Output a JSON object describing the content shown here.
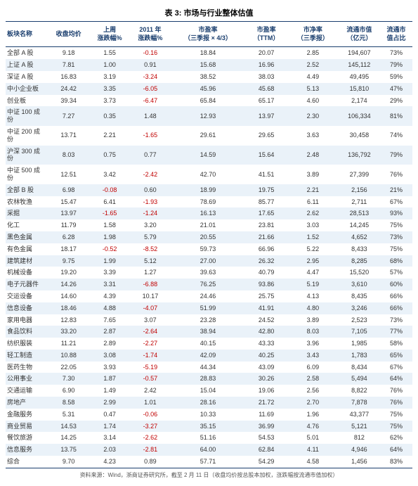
{
  "title": "表 3: 市场与行业整体估值",
  "columns": [
    "板块名称",
    "收盘均价",
    "上周\n涨跌幅%",
    "2011 年\n涨跌幅%",
    "市盈率\n（三季报 × 4/3）",
    "市盈率\n（TTM）",
    "市净率\n（三季报）",
    "流通市值\n（亿元）",
    "流通市\n值占比"
  ],
  "rows": [
    [
      "全部 A 股",
      "9.18",
      "1.55",
      "-0.16",
      "18.84",
      "20.07",
      "2.85",
      "194,607",
      "73%"
    ],
    [
      "上证 A 股",
      "7.81",
      "1.00",
      "0.91",
      "15.68",
      "16.96",
      "2.52",
      "145,112",
      "79%"
    ],
    [
      "深证 A 股",
      "16.83",
      "3.19",
      "-3.24",
      "38.52",
      "38.03",
      "4.49",
      "49,495",
      "59%"
    ],
    [
      "中小企业板",
      "24.42",
      "3.35",
      "-6.05",
      "45.96",
      "45.68",
      "5.13",
      "15,810",
      "47%"
    ],
    [
      "创业板",
      "39.34",
      "3.73",
      "-6.47",
      "65.84",
      "65.17",
      "4.60",
      "2,174",
      "29%"
    ],
    [
      "中证 100 成份",
      "7.27",
      "0.35",
      "1.48",
      "12.93",
      "13.97",
      "2.30",
      "106,334",
      "81%"
    ],
    [
      "中证 200 成份",
      "13.71",
      "2.21",
      "-1.65",
      "29.61",
      "29.65",
      "3.63",
      "30,458",
      "74%"
    ],
    [
      "沪深 300 成份",
      "8.03",
      "0.75",
      "0.77",
      "14.59",
      "15.64",
      "2.48",
      "136,792",
      "79%"
    ],
    [
      "中证 500 成份",
      "12.51",
      "3.42",
      "-2.42",
      "42.70",
      "41.51",
      "3.89",
      "27,399",
      "76%"
    ],
    [
      "全部 B 股",
      "6.98",
      "-0.08",
      "0.60",
      "18.99",
      "19.75",
      "2.21",
      "2,156",
      "21%"
    ],
    [
      "农林牧渔",
      "15.47",
      "6.41",
      "-1.93",
      "78.69",
      "85.77",
      "6.11",
      "2,711",
      "67%"
    ],
    [
      "采掘",
      "13.97",
      "-1.65",
      "-1.24",
      "16.13",
      "17.65",
      "2.62",
      "28,513",
      "93%"
    ],
    [
      "化工",
      "11.79",
      "1.58",
      "3.20",
      "21.01",
      "23.81",
      "3.03",
      "14,245",
      "75%"
    ],
    [
      "黑色金属",
      "6.28",
      "1.98",
      "5.79",
      "20.55",
      "21.66",
      "1.52",
      "4,652",
      "73%"
    ],
    [
      "有色金属",
      "18.17",
      "-0.52",
      "-8.52",
      "59.73",
      "66.96",
      "5.22",
      "8,433",
      "75%"
    ],
    [
      "建筑建材",
      "9.75",
      "1.99",
      "5.12",
      "27.00",
      "26.32",
      "2.95",
      "8,285",
      "68%"
    ],
    [
      "机械设备",
      "19.20",
      "3.39",
      "1.27",
      "39.63",
      "40.79",
      "4.47",
      "15,520",
      "57%"
    ],
    [
      "电子元器件",
      "14.26",
      "3.31",
      "-6.88",
      "76.25",
      "93.86",
      "5.19",
      "3,610",
      "60%"
    ],
    [
      "交运设备",
      "14.60",
      "4.39",
      "10.17",
      "24.46",
      "25.75",
      "4.13",
      "8,435",
      "66%"
    ],
    [
      "信息设备",
      "18.46",
      "4.88",
      "-4.07",
      "51.99",
      "41.91",
      "4.80",
      "3,246",
      "66%"
    ],
    [
      "家用电器",
      "12.83",
      "7.65",
      "3.07",
      "23.28",
      "24.52",
      "3.89",
      "2,523",
      "73%"
    ],
    [
      "食品饮料",
      "33.20",
      "2.87",
      "-2.64",
      "38.94",
      "42.80",
      "8.03",
      "7,105",
      "77%"
    ],
    [
      "纺织服装",
      "11.21",
      "2.89",
      "-2.27",
      "40.15",
      "43.33",
      "3.96",
      "1,985",
      "58%"
    ],
    [
      "轻工制造",
      "10.88",
      "3.08",
      "-1.74",
      "42.09",
      "40.25",
      "3.43",
      "1,783",
      "65%"
    ],
    [
      "医药生物",
      "22.05",
      "3.93",
      "-5.19",
      "44.34",
      "43.09",
      "6.09",
      "8,434",
      "67%"
    ],
    [
      "公用事业",
      "7.30",
      "1.87",
      "-0.57",
      "28.83",
      "30.26",
      "2.58",
      "5,494",
      "64%"
    ],
    [
      "交通运输",
      "6.90",
      "1.49",
      "2.42",
      "15.04",
      "19.06",
      "2.56",
      "8,822",
      "76%"
    ],
    [
      "房地产",
      "8.58",
      "2.99",
      "1.01",
      "28.16",
      "21.72",
      "2.70",
      "7,878",
      "76%"
    ],
    [
      "金融服务",
      "5.31",
      "0.47",
      "-0.06",
      "10.33",
      "11.69",
      "1.96",
      "43,377",
      "75%"
    ],
    [
      "商业贸易",
      "14.53",
      "1.74",
      "-3.27",
      "35.15",
      "36.99",
      "4.76",
      "5,121",
      "75%"
    ],
    [
      "餐饮旅游",
      "14.25",
      "3.14",
      "-2.62",
      "51.16",
      "54.53",
      "5.01",
      "812",
      "62%"
    ],
    [
      "信息服务",
      "13.75",
      "2.03",
      "-2.81",
      "64.00",
      "62.84",
      "4.11",
      "4,946",
      "64%"
    ],
    [
      "综合",
      "9.70",
      "4.23",
      "0.89",
      "57.71",
      "54.29",
      "4.58",
      "1,456",
      "83%"
    ]
  ],
  "negative_color": "#c00000",
  "footnote": "资料来源：Wind，浙商证券研究所，截至 2 月 11 日（收盘均价按总股本加权，涨跌幅按流通市值加权）"
}
